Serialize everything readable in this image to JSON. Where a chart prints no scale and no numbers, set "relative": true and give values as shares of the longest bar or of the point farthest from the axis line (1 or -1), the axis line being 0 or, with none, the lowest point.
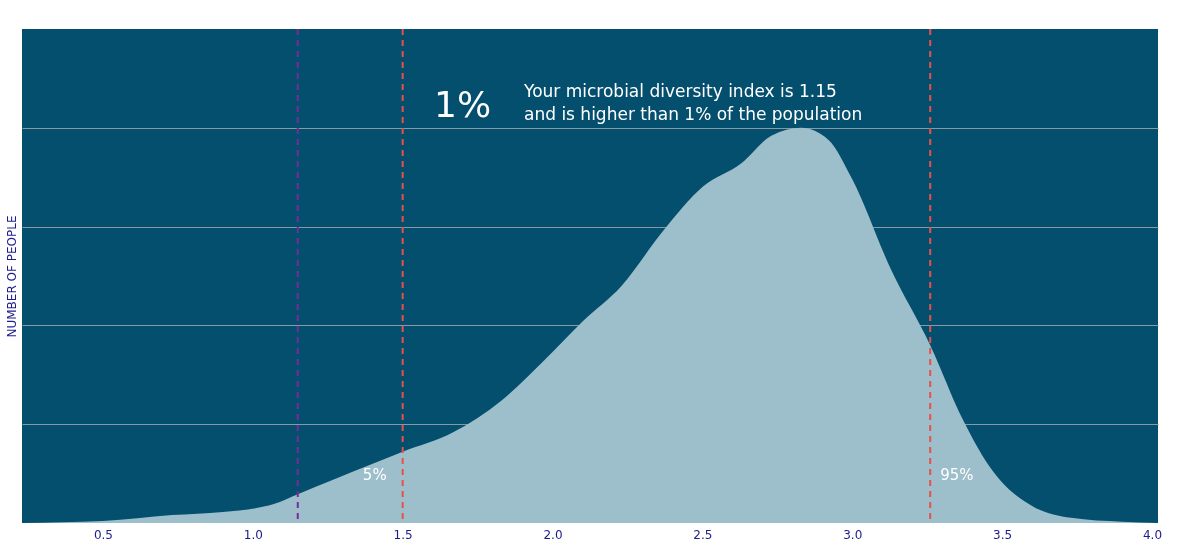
{
  "chart_data": {
    "type": "area",
    "relative": true,
    "ylabel": "NUMBER OF PEOPLE",
    "annotations": [
      "1%",
      "Your microbial diversity index is 1.15\nand is higher than 1% of the population",
      {
        "text": "5%",
        "x": 1.5
      },
      {
        "text": "95%",
        "x": 3.26
      }
    ],
    "x": [
      0.23,
      0.5,
      0.73,
      0.9,
      1.07,
      1.15,
      1.27,
      1.4,
      1.5,
      1.67,
      1.83,
      1.97,
      2.1,
      2.23,
      2.37,
      2.5,
      2.63,
      2.73,
      2.83,
      2.92,
      3.0,
      3.13,
      3.26,
      3.37,
      3.47,
      3.6,
      3.73,
      3.9,
      4.02
    ],
    "series": [
      {
        "color": "#9dbfcc",
        "values": [
          0,
          0.005,
          0.02,
          0.028,
          0.048,
          0.073,
          0.11,
          0.15,
          0.18,
          0.23,
          0.31,
          0.41,
          0.51,
          0.6,
          0.74,
          0.85,
          0.91,
          0.98,
          1.0,
          0.97,
          0.87,
          0.64,
          0.45,
          0.26,
          0.13,
          0.043,
          0.013,
          0.003,
          0
        ]
      }
    ],
    "xlim": [
      0.23,
      4.02
    ],
    "xticks": [
      0.5,
      {
        "value": 1,
        "label": "1.0"
      },
      1.5,
      {
        "value": 2,
        "label": "2.0"
      },
      2.5,
      {
        "value": 3,
        "label": "3.0"
      },
      3.5,
      {
        "value": 4,
        "label": "4.0"
      }
    ],
    "ref_lines": [
      {
        "axis": "x",
        "value": 1.15,
        "label": null,
        "color": "#7a2a9a",
        "line_style": "dashed"
      },
      {
        "axis": "x",
        "value": 1.5,
        "label": null,
        "color": "#e8504a",
        "line_style": "dashed"
      },
      {
        "axis": "x",
        "value": 3.26,
        "label": null,
        "color": "#e8504a",
        "line_style": "dashed"
      }
    ],
    "grid": "y"
  }
}
